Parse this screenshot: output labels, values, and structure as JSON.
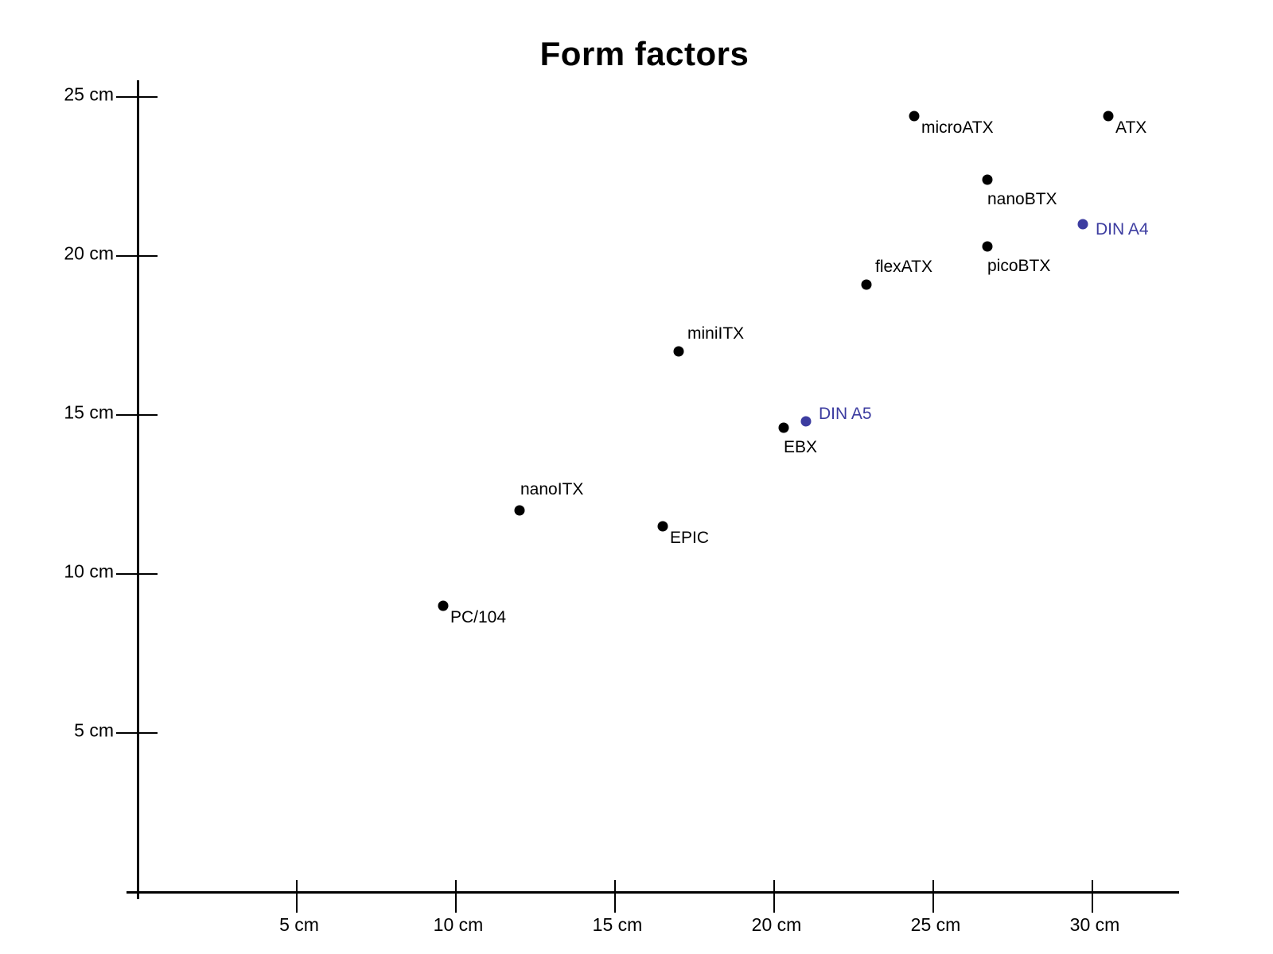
{
  "title": "Form factors",
  "colors": {
    "axis": "#000000",
    "default_point": "#000000",
    "highlight_point": "#3c3ca0"
  },
  "chart_data": {
    "type": "scatter",
    "title": "Form factors",
    "xlabel": "",
    "ylabel": "",
    "unit": "cm",
    "xlim": [
      0,
      33
    ],
    "ylim": [
      0,
      25.5
    ],
    "grid": false,
    "legend": "none",
    "x_ticks": [
      {
        "value": 5,
        "label": "5 cm"
      },
      {
        "value": 10,
        "label": "10 cm"
      },
      {
        "value": 15,
        "label": "15 cm"
      },
      {
        "value": 20,
        "label": "20 cm"
      },
      {
        "value": 25,
        "label": "25 cm"
      },
      {
        "value": 30,
        "label": "30 cm"
      }
    ],
    "y_ticks": [
      {
        "value": 5,
        "label": "5 cm"
      },
      {
        "value": 10,
        "label": "10 cm"
      },
      {
        "value": 15,
        "label": "15 cm"
      },
      {
        "value": 20,
        "label": "20 cm"
      },
      {
        "value": 25,
        "label": "25 cm"
      }
    ],
    "points": [
      {
        "label": "microATX",
        "x": 24.4,
        "y": 24.4,
        "color": "#000000",
        "highlight": false,
        "label_pos": "se"
      },
      {
        "label": "ATX",
        "x": 30.5,
        "y": 24.4,
        "color": "#000000",
        "highlight": false,
        "label_pos": "se"
      },
      {
        "label": "nanoBTX",
        "x": 26.7,
        "y": 22.4,
        "color": "#000000",
        "highlight": false,
        "label_pos": "s"
      },
      {
        "label": "DIN A4",
        "x": 29.7,
        "y": 21.0,
        "color": "#3c3ca0",
        "highlight": true,
        "label_pos": "e"
      },
      {
        "label": "picoBTX",
        "x": 26.7,
        "y": 20.3,
        "color": "#000000",
        "highlight": false,
        "label_pos": "s"
      },
      {
        "label": "flexATX",
        "x": 22.9,
        "y": 19.1,
        "color": "#000000",
        "highlight": false,
        "label_pos": "ne"
      },
      {
        "label": "miniITX",
        "x": 17.0,
        "y": 17.0,
        "color": "#000000",
        "highlight": false,
        "label_pos": "ne"
      },
      {
        "label": "DIN A5",
        "x": 21.0,
        "y": 14.8,
        "color": "#3c3ca0",
        "highlight": true,
        "label_pos": "e-up"
      },
      {
        "label": "EBX",
        "x": 20.3,
        "y": 14.6,
        "color": "#000000",
        "highlight": false,
        "label_pos": "s"
      },
      {
        "label": "nanoITX",
        "x": 12.0,
        "y": 12.0,
        "color": "#000000",
        "highlight": false,
        "label_pos": "n"
      },
      {
        "label": "EPIC",
        "x": 16.5,
        "y": 11.5,
        "color": "#000000",
        "highlight": false,
        "label_pos": "se"
      },
      {
        "label": "PC/104",
        "x": 9.6,
        "y": 9.0,
        "color": "#000000",
        "highlight": false,
        "label_pos": "se"
      }
    ]
  }
}
